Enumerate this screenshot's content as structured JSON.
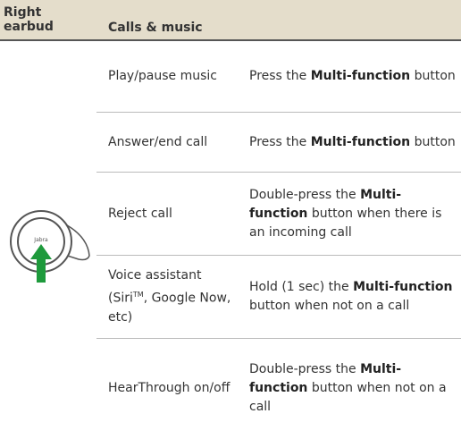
{
  "header": {
    "col1": "Right earbud",
    "col2": "Calls & music"
  },
  "icon_label": "Jabra",
  "rows": [
    {
      "action": "Play/pause music",
      "description": {
        "before": "Press the ",
        "bold": "Multi-function",
        "after": " button"
      }
    },
    {
      "action": "Answer/end call",
      "description": {
        "before": "Press the ",
        "bold": "Multi-function",
        "after": " button"
      }
    },
    {
      "action": "Reject call",
      "description": {
        "before": "Double-press the ",
        "bold": "Multi-function",
        "after": " button when there is an incoming call"
      }
    },
    {
      "action": {
        "before": "Voice assistant (Siri",
        "superscript": "TM",
        "after": ", Google Now, etc)"
      },
      "description": {
        "before": "Hold (1 sec) the ",
        "bold": "Multi-function",
        "after": " button when not on a call"
      }
    },
    {
      "action": "HearThrough on/off",
      "description": {
        "before": "Double-press the ",
        "bold": "Multi-function",
        "after": " button when not on a call"
      }
    }
  ]
}
